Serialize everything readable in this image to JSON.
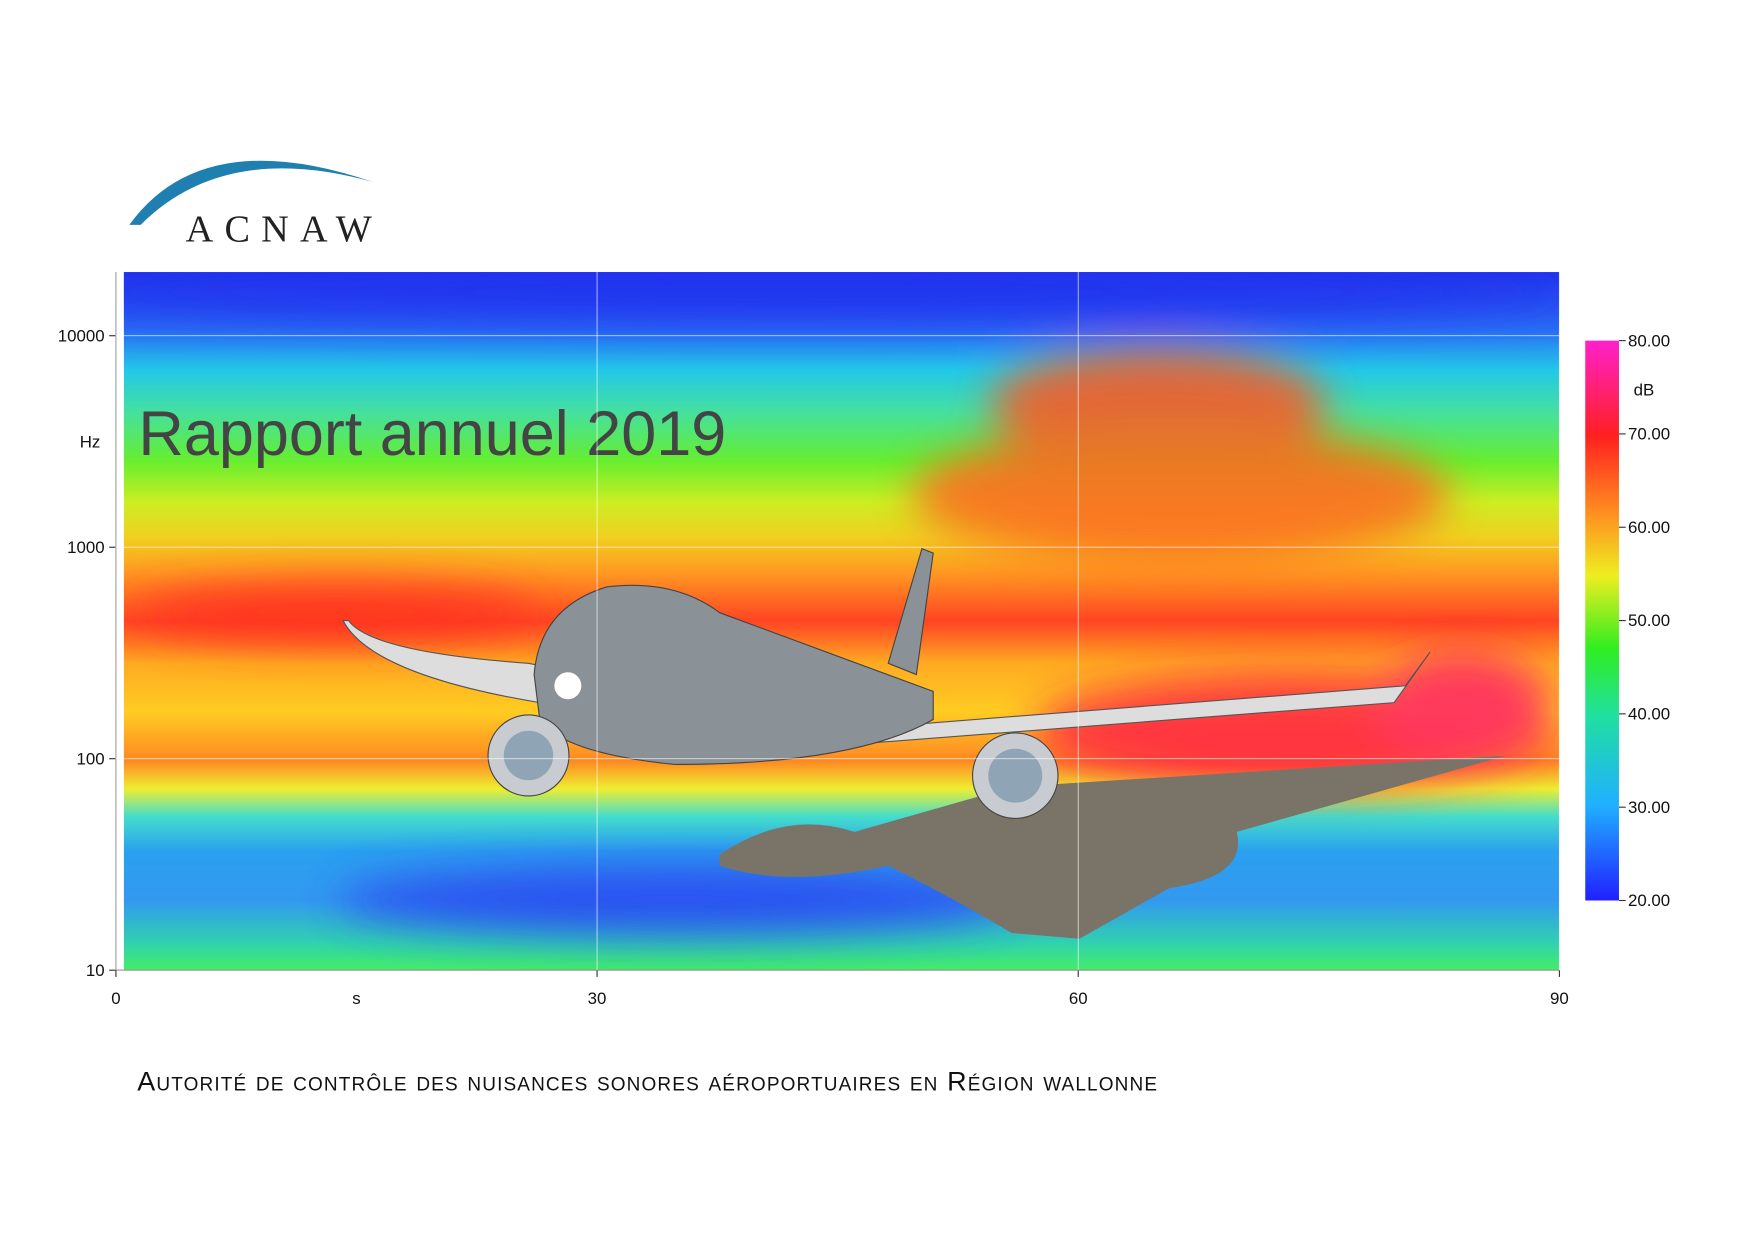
{
  "logo": {
    "text": "ACNAW"
  },
  "title": "Rapport annuel 2019",
  "subtitle": "Autorité de contrôle des nuisances sonores aéroportuaires en Région wallonne",
  "chart_data": {
    "type": "heatmap",
    "xlabel": "s",
    "ylabel": "Hz",
    "xlim": [
      0,
      90
    ],
    "xticks": [
      0,
      30,
      60,
      90
    ],
    "ylim": [
      10,
      20000
    ],
    "yscale": "log",
    "yticks": [
      10,
      100,
      1000,
      10000
    ],
    "grid": true,
    "colorbar": {
      "label": "dB",
      "lim": [
        20,
        80
      ],
      "ticks": [
        {
          "value": 20,
          "label": "20.00"
        },
        {
          "value": 30,
          "label": "30.00"
        },
        {
          "value": 40,
          "label": "40.00"
        },
        {
          "value": 50,
          "label": "50.00"
        },
        {
          "value": 60,
          "label": "60.00"
        },
        {
          "value": 70,
          "label": "70.00"
        },
        {
          "value": 80,
          "label": "80.00"
        }
      ]
    }
  }
}
